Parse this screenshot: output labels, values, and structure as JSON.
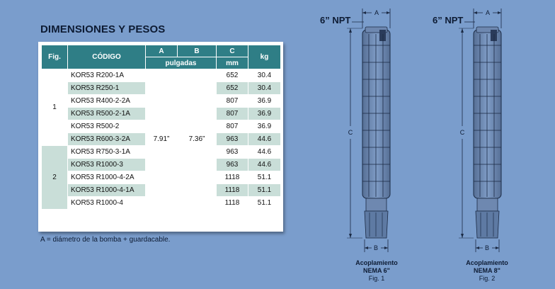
{
  "title": "DIMENSIONES Y PESOS",
  "headers": {
    "fig": "Fig.",
    "codigo": "CÓDIGO",
    "a": "A",
    "b": "B",
    "c": "C",
    "kg": "kg",
    "pulgadas": "pulgadas",
    "mm": "mm"
  },
  "groups": [
    {
      "fig": "1",
      "rows": [
        {
          "code": "KOR53 R200-1A",
          "c": "652",
          "kg": "30.4"
        },
        {
          "code": "KOR53 R250-1",
          "c": "652",
          "kg": "30.4"
        },
        {
          "code": "KOR53 R400-2-2A",
          "c": "807",
          "kg": "36.9"
        },
        {
          "code": "KOR53 R500-2-1A",
          "c": "807",
          "kg": "36.9"
        },
        {
          "code": "KOR53 R500-2",
          "c": "807",
          "kg": "36.9"
        },
        {
          "code": "KOR53 R600-3-2A",
          "c": "963",
          "kg": "44.6"
        }
      ]
    },
    {
      "fig": "2",
      "rows": [
        {
          "code": "KOR53 R750-3-1A",
          "c": "963",
          "kg": "44.6"
        },
        {
          "code": "KOR53 R1000-3",
          "c": "963",
          "kg": "44.6"
        },
        {
          "code": "KOR53 R1000-4-2A",
          "c": "1118",
          "kg": "51.1"
        },
        {
          "code": "KOR53 R1000-4-1A",
          "c": "1118",
          "kg": "51.1"
        },
        {
          "code": "KOR53 R1000-4",
          "c": "1118",
          "kg": "51.1"
        }
      ]
    }
  ],
  "a_value": "7.91”",
  "b_value": "7.36”",
  "note": "A = diámetro de la bomba + guardacable.",
  "figures": [
    {
      "npt": "6” NPT",
      "dim_a": "A",
      "dim_b": "B",
      "dim_c": "C",
      "cap1": "Acoplamiento",
      "cap2": "NEMA 6\"",
      "cap3": "Fig. 1"
    },
    {
      "npt": "6” NPT",
      "dim_a": "A",
      "dim_b": "B",
      "dim_c": "C",
      "cap1": "Acoplamiento",
      "cap2": "NEMA 8\"",
      "cap3": "Fig. 2"
    }
  ],
  "colors": {
    "background": "#7a9dcc",
    "header": "#2f7e86",
    "row_shade": "#c9ded8"
  }
}
